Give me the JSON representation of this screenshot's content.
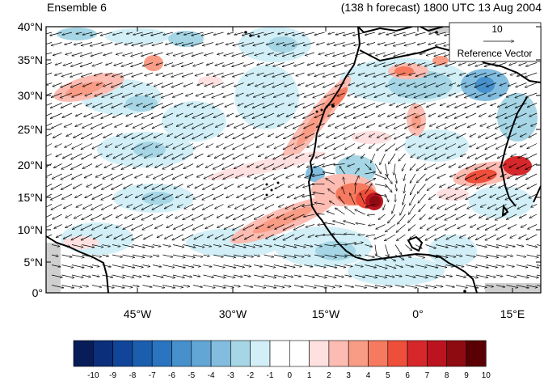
{
  "header": {
    "left_title": "Ensemble 6",
    "right_title": "(138 h forecast) 1800 UTC 13 Aug 2004"
  },
  "reference_vector": {
    "magnitude_label": "10",
    "caption": "Reference Vector"
  },
  "axes": {
    "lat_labels": [
      "40°N",
      "35°N",
      "30°N",
      "25°N",
      "20°N",
      "15°N",
      "10°N",
      "5°N",
      "0°"
    ],
    "lon_labels": [
      "45°W",
      "30°W",
      "15°W",
      "0°",
      "15°E"
    ]
  },
  "colorbar": {
    "labels": [
      "-10",
      "-9",
      "-8",
      "-7",
      "-6",
      "-5",
      "-4",
      "-3",
      "-2",
      "-1",
      "0",
      "1",
      "2",
      "3",
      "4",
      "5",
      "6",
      "7",
      "8",
      "9",
      "10"
    ],
    "colors": [
      "#081d58",
      "#0b2f7a",
      "#10459a",
      "#1c5eae",
      "#2a74c0",
      "#4690cb",
      "#62a6d6",
      "#82bddf",
      "#a6d6e5",
      "#d2eff7",
      "#ffffff",
      "#ffffff",
      "#fde0df",
      "#fcbcb2",
      "#f99c86",
      "#f57a5f",
      "#ee4f3b",
      "#d6282b",
      "#bb1420",
      "#8e0b12",
      "#5a0004"
    ]
  }
}
